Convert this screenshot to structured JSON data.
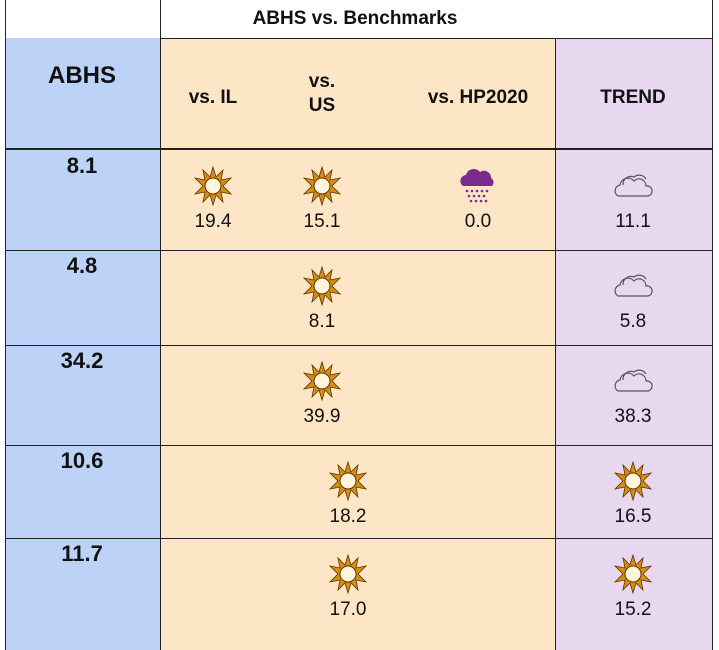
{
  "header": {
    "title": "ABHS vs. Benchmarks"
  },
  "columns": [
    "ABHS",
    "vs. IL",
    "vs. US",
    "vs. HP2020",
    "TREND"
  ],
  "rows": [
    {
      "abhs": "8.1",
      "il": "19.4",
      "us": "15.1",
      "hp": "0.0",
      "trend": "11.1"
    },
    {
      "abhs": "4.8",
      "us": "8.1",
      "trend": "5.8"
    },
    {
      "abhs": "34.2",
      "us": "39.9",
      "trend": "38.3"
    },
    {
      "abhs": "10.6",
      "us": "18.2",
      "trend": "16.5"
    },
    {
      "abhs": "11.7",
      "us": "17.0",
      "trend": "15.2"
    }
  ]
}
